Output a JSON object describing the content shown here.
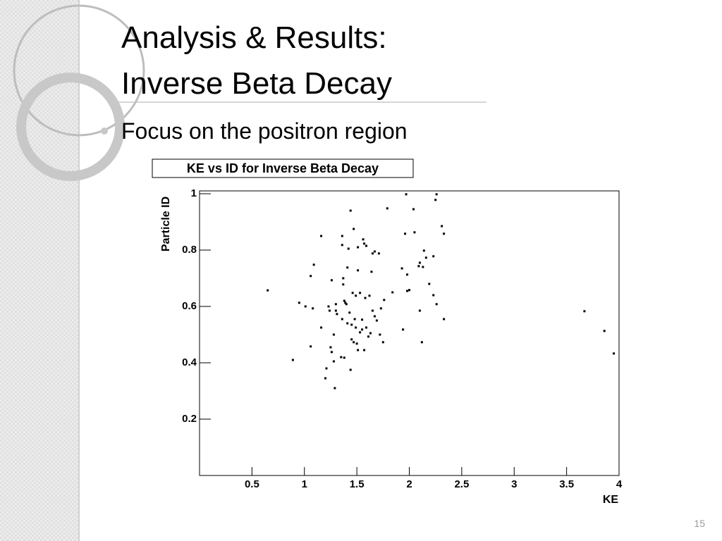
{
  "slide": {
    "title_lines": [
      "Analysis & Results:",
      "Inverse Beta Decay"
    ],
    "bullet": "Focus on the positron region",
    "page_number": 15
  },
  "chart_data": {
    "type": "scatter",
    "title": "KE vs ID for Inverse Beta Decay",
    "x_label": "KE",
    "y_label": "Particle ID",
    "color": "#000000",
    "xlim": [
      0,
      4
    ],
    "ylim": [
      0,
      1
    ],
    "xticks": [
      0.5,
      1,
      1.5,
      2,
      2.5,
      3,
      3.5,
      4
    ],
    "yticks": [
      0.2,
      0.4,
      0.6,
      0.8,
      1
    ],
    "x": [
      0.65,
      0.89,
      0.95,
      1.01,
      1.06,
      1.06,
      1.09,
      1.08,
      1.16,
      1.16,
      1.2,
      1.21,
      1.23,
      1.24,
      1.25,
      1.26,
      1.26,
      1.28,
      1.28,
      1.29,
      1.3,
      1.3,
      1.31,
      1.35,
      1.36,
      1.36,
      1.36,
      1.37,
      1.37,
      1.38,
      1.38,
      1.39,
      1.4,
      1.41,
      1.41,
      1.42,
      1.43,
      1.44,
      1.44,
      1.45,
      1.45,
      1.46,
      1.47,
      1.47,
      1.48,
      1.49,
      1.49,
      1.5,
      1.51,
      1.51,
      1.51,
      1.53,
      1.53,
      1.55,
      1.55,
      1.56,
      1.57,
      1.57,
      1.58,
      1.59,
      1.59,
      1.61,
      1.62,
      1.63,
      1.64,
      1.65,
      1.65,
      1.67,
      1.67,
      1.69,
      1.71,
      1.72,
      1.73,
      1.75,
      1.76,
      1.79,
      1.84,
      1.93,
      1.94,
      1.96,
      1.97,
      1.98,
      1.98,
      2.0,
      2.04,
      2.05,
      2.09,
      2.1,
      2.1,
      2.12,
      2.13,
      2.14,
      2.16,
      2.19,
      2.23,
      2.23,
      2.25,
      2.26,
      2.26,
      2.31,
      2.33,
      2.33,
      3.67,
      3.86,
      3.95
    ],
    "values": [
      0.657,
      0.41,
      0.613,
      0.6,
      0.458,
      0.708,
      0.748,
      0.593,
      0.85,
      0.525,
      0.345,
      0.38,
      0.6,
      0.585,
      0.455,
      0.438,
      0.693,
      0.5,
      0.405,
      0.31,
      0.608,
      0.585,
      0.573,
      0.42,
      0.555,
      0.818,
      0.85,
      0.7,
      0.678,
      0.418,
      0.62,
      0.613,
      0.608,
      0.54,
      0.738,
      0.805,
      0.578,
      0.94,
      0.375,
      0.535,
      0.483,
      0.648,
      0.473,
      0.875,
      0.555,
      0.525,
      0.638,
      0.468,
      0.81,
      0.728,
      0.445,
      0.508,
      0.648,
      0.553,
      0.518,
      0.838,
      0.823,
      0.445,
      0.63,
      0.815,
      0.525,
      0.493,
      0.638,
      0.505,
      0.723,
      0.788,
      0.585,
      0.795,
      0.565,
      0.55,
      0.788,
      0.5,
      0.593,
      0.473,
      0.623,
      0.948,
      0.65,
      0.735,
      0.518,
      0.858,
      0.998,
      0.713,
      0.655,
      0.658,
      0.945,
      0.863,
      0.743,
      0.755,
      0.585,
      0.473,
      0.74,
      0.798,
      0.773,
      0.68,
      0.778,
      0.64,
      0.978,
      0.608,
      0.998,
      0.885,
      0.858,
      0.555,
      0.583,
      0.513,
      0.433
    ]
  }
}
